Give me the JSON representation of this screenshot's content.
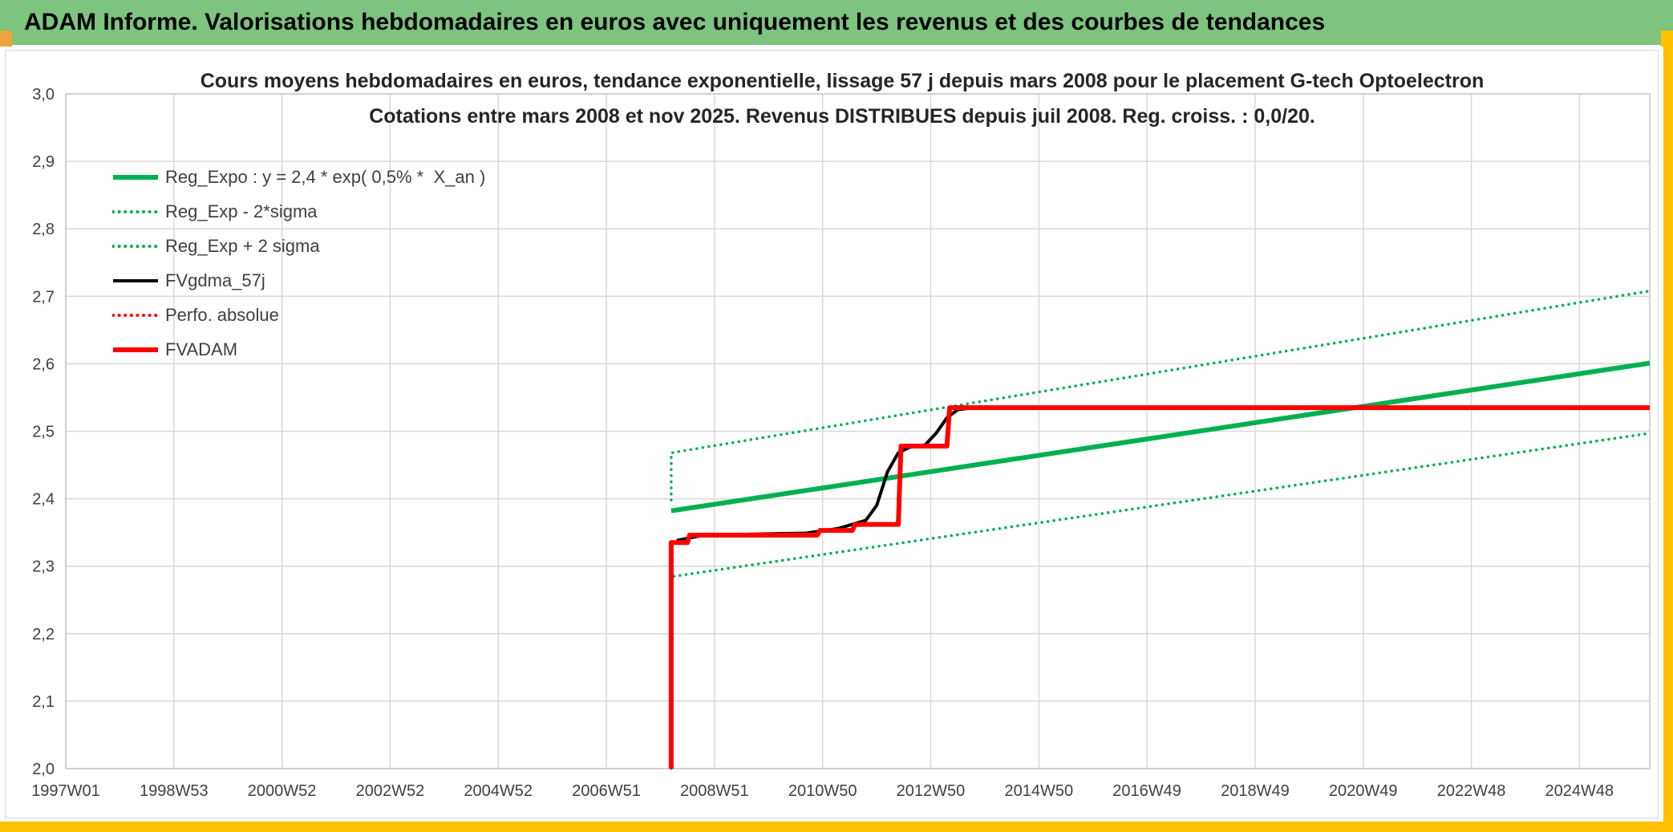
{
  "header": {
    "title": "ADAM Informe. Valorisations hebdomadaires en euros avec uniquement les revenus et des courbes de tendances",
    "bg_color": "#7DC47E",
    "accent_left_color": "#EDA33B",
    "accent_right_color": "#FFC000",
    "strip_color": "#FFC000"
  },
  "chart_data": {
    "type": "line",
    "title_line1": "Cours moyens hebdomadaires en euros, tendance exponentielle, lissage 57 j depuis mars 2008 pour le placement G-tech Optoelectron",
    "title_line2": "Cotations entre mars 2008 et nov 2025. Revenus DISTRIBUES depuis juil 2008. Reg. croiss. : 0,0/20.",
    "grid": true,
    "legend_position": "top-left",
    "colors": {
      "grid": "#D9D9D9",
      "plot_border": "#C6C6C6",
      "axis_text": "#404040",
      "green": "#00B050",
      "red": "#FF0000",
      "black": "#000000"
    },
    "x_axis": {
      "min_year": 1997,
      "max_year": 2026.3,
      "tick_years": [
        1997,
        1999,
        2001,
        2003,
        2005,
        2007,
        2009,
        2011,
        2013,
        2015,
        2017,
        2019,
        2021,
        2023,
        2025
      ],
      "tick_labels": [
        "1997W01",
        "1998W53",
        "2000W52",
        "2002W52",
        "2004W52",
        "2006W51",
        "2008W51",
        "2010W50",
        "2012W50",
        "2014W50",
        "2016W49",
        "2018W49",
        "2020W49",
        "2022W48",
        "2024W48"
      ]
    },
    "y_axis": {
      "min": 2.0,
      "max": 3.0,
      "tick_values": [
        3.0,
        2.9,
        2.8,
        2.7,
        2.6,
        2.5,
        2.4,
        2.3,
        2.2,
        2.1,
        2.0
      ],
      "tick_labels": [
        "3,0",
        "2,9",
        "2,8",
        "2,7",
        "2,6",
        "2,5",
        "2,4",
        "2,3",
        "2,2",
        "2,1",
        "2,0"
      ]
    },
    "legend": [
      {
        "key": "reg_expo",
        "label": "Reg_Expo : y = 2,4 * exp( 0,5% *  X_an )",
        "color": "#00B050",
        "style": "solid",
        "thick": true
      },
      {
        "key": "reg_exp_minus_2sigma",
        "label": "Reg_Exp - 2*sigma",
        "color": "#00B050",
        "style": "dotted",
        "thick": false
      },
      {
        "key": "reg_exp_plus_2sigma",
        "label": "Reg_Exp + 2 sigma",
        "color": "#00B050",
        "style": "dotted",
        "thick": false
      },
      {
        "key": "fvgdma_57j",
        "label": "FVgdma_57j",
        "color": "#000000",
        "style": "solid",
        "thick": false
      },
      {
        "key": "perfo_absolue",
        "label": "Perfo. absolue",
        "color": "#FF0000",
        "style": "dotted",
        "thick": false
      },
      {
        "key": "fvadam",
        "label": "FVADAM",
        "color": "#FF0000",
        "style": "solid",
        "thick": true
      }
    ],
    "series": [
      {
        "key": "reg_exp_plus_2sigma",
        "name": "Reg_Exp + 2 sigma",
        "color": "#00B050",
        "style": "dotted",
        "width": 3.5,
        "points": [
          [
            2008.2,
            2.398
          ],
          [
            2008.2,
            2.468
          ],
          [
            2026.3,
            2.708
          ]
        ]
      },
      {
        "key": "reg_exp_minus_2sigma",
        "name": "Reg_Exp - 2*sigma",
        "color": "#00B050",
        "style": "dotted",
        "width": 3.5,
        "points": [
          [
            2008.25,
            2.285
          ],
          [
            2026.3,
            2.497
          ]
        ]
      },
      {
        "key": "reg_expo",
        "name": "Reg_Expo",
        "color": "#00B050",
        "style": "solid",
        "width": 6,
        "points": [
          [
            2008.2,
            2.382
          ],
          [
            2026.3,
            2.601
          ]
        ]
      },
      {
        "key": "fvgdma_57j",
        "name": "FVgdma_57j",
        "color": "#000000",
        "style": "solid",
        "width": 4,
        "points": [
          [
            2008.3,
            2.338
          ],
          [
            2008.8,
            2.346
          ],
          [
            2010.7,
            2.349
          ],
          [
            2011.3,
            2.356
          ],
          [
            2011.8,
            2.368
          ],
          [
            2012.0,
            2.39
          ],
          [
            2012.2,
            2.44
          ],
          [
            2012.4,
            2.468
          ],
          [
            2012.6,
            2.476
          ],
          [
            2012.9,
            2.48
          ],
          [
            2013.1,
            2.497
          ],
          [
            2013.3,
            2.52
          ],
          [
            2013.5,
            2.532
          ],
          [
            2013.8,
            2.535
          ],
          [
            2026.3,
            2.535
          ]
        ]
      },
      {
        "key": "perfo_absolue",
        "name": "Perfo. absolue",
        "color": "#FF0000",
        "style": "dotted",
        "width": 3,
        "points": [
          [
            2008.2,
            2.0
          ],
          [
            2008.2,
            2.335
          ],
          [
            2008.5,
            2.335
          ],
          [
            2008.54,
            2.346
          ],
          [
            2010.9,
            2.346
          ],
          [
            2010.95,
            2.353
          ],
          [
            2011.55,
            2.353
          ],
          [
            2011.6,
            2.362
          ],
          [
            2012.4,
            2.362
          ],
          [
            2012.45,
            2.478
          ],
          [
            2013.3,
            2.478
          ],
          [
            2013.35,
            2.535
          ],
          [
            2026.3,
            2.535
          ]
        ]
      },
      {
        "key": "fvadam",
        "name": "FVADAM",
        "color": "#FF0000",
        "style": "solid",
        "width": 6,
        "points": [
          [
            2008.2,
            2.0
          ],
          [
            2008.2,
            2.335
          ],
          [
            2008.5,
            2.335
          ],
          [
            2008.54,
            2.346
          ],
          [
            2010.9,
            2.346
          ],
          [
            2010.95,
            2.353
          ],
          [
            2011.55,
            2.353
          ],
          [
            2011.6,
            2.362
          ],
          [
            2012.4,
            2.362
          ],
          [
            2012.45,
            2.478
          ],
          [
            2013.3,
            2.478
          ],
          [
            2013.35,
            2.535
          ],
          [
            2026.3,
            2.535
          ]
        ]
      }
    ]
  }
}
